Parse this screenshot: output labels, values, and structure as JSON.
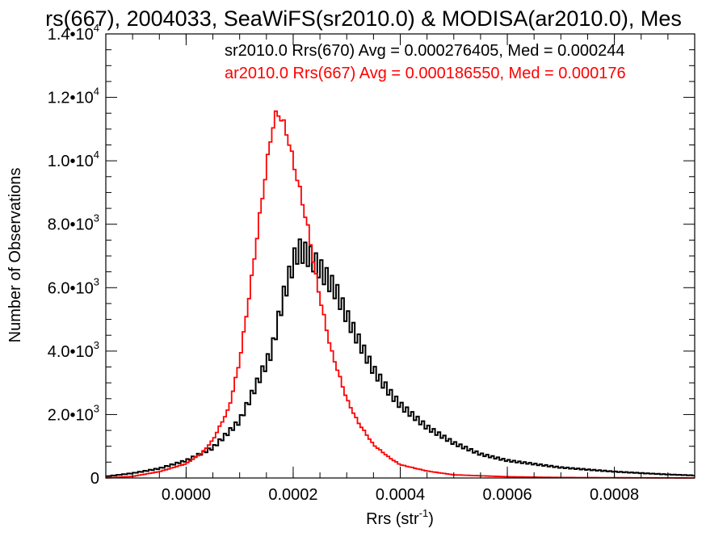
{
  "chart_data": {
    "type": "histogram-step",
    "title": "rs(667), 2004033, SeaWiFS(sr2010.0) & MODISA(ar2010.0), Mes",
    "xlabel": "Rrs (str",
    "xlabel_sup": "-1",
    "xlabel_end": ")",
    "ylabel": "Number of Observations",
    "xlim": [
      -0.00015,
      0.00095
    ],
    "ylim": [
      0,
      14000
    ],
    "x_ticks": [
      {
        "value": 0.0,
        "label": "0.0000"
      },
      {
        "value": 0.0002,
        "label": "0.0002"
      },
      {
        "value": 0.0004,
        "label": "0.0004"
      },
      {
        "value": 0.0006,
        "label": "0.0006"
      },
      {
        "value": 0.0008,
        "label": "0.0008"
      }
    ],
    "y_ticks": [
      {
        "value": 0,
        "mant": "0",
        "exp": ""
      },
      {
        "value": 2000,
        "mant": "2.0•10",
        "exp": "3"
      },
      {
        "value": 4000,
        "mant": "4.0•10",
        "exp": "3"
      },
      {
        "value": 6000,
        "mant": "6.0•10",
        "exp": "3"
      },
      {
        "value": 8000,
        "mant": "8.0•10",
        "exp": "3"
      },
      {
        "value": 10000,
        "mant": "1.0•10",
        "exp": "4"
      },
      {
        "value": 12000,
        "mant": "1.2•10",
        "exp": "4"
      },
      {
        "value": 14000,
        "mant": "1.4•10",
        "exp": "4"
      }
    ],
    "legend": {
      "placement": "top-right",
      "entries": [
        {
          "text": "sr2010.0 Rrs(670) Avg = 0.000276405, Med = 0.000244",
          "color": "#000000"
        },
        {
          "text": "ar2010.0 Rrs(667) Avg = 0.000186550, Med = 0.000176",
          "color": "#ff0000"
        }
      ]
    },
    "bin_width": 5e-06,
    "series": [
      {
        "name": "sr2010.0 Rrs(670)",
        "color": "#000000",
        "x": [
          -0.00015,
          -0.0001,
          -5e-05,
          0.0,
          5e-05,
          0.0001,
          0.00013,
          0.00016,
          0.00018,
          0.0002,
          0.00021,
          0.00022,
          0.00023,
          0.00025,
          0.00028,
          0.0003,
          0.00032,
          0.00035,
          0.00038,
          0.0004,
          0.00045,
          0.0005,
          0.00055,
          0.0006,
          0.0007,
          0.0008,
          0.0009,
          0.00095
        ],
        "y": [
          50,
          150,
          300,
          550,
          950,
          1800,
          2900,
          4000,
          5600,
          6800,
          7200,
          7100,
          7000,
          6600,
          5900,
          5100,
          4400,
          3400,
          2700,
          2300,
          1600,
          1100,
          750,
          550,
          330,
          200,
          110,
          80
        ]
      },
      {
        "name": "ar2010.0 Rrs(667)",
        "color": "#ff0000",
        "x": [
          -0.00015,
          -0.0001,
          -5e-05,
          0.0,
          3e-05,
          5e-05,
          8e-05,
          0.0001,
          0.00012,
          0.00014,
          0.00015,
          0.00016,
          0.00017,
          0.00018,
          0.00019,
          0.0002,
          0.00021,
          0.00022,
          0.00023,
          0.00024,
          0.00025,
          0.00027,
          0.0003,
          0.00032,
          0.00035,
          0.00038,
          0.0004,
          0.00045,
          0.0005,
          0.0006,
          0.0007,
          0.00095
        ],
        "y": [
          0,
          50,
          200,
          450,
          800,
          1200,
          2200,
          3700,
          6000,
          8600,
          9800,
          11000,
          11600,
          11300,
          10800,
          10000,
          9300,
          8500,
          7700,
          6600,
          5700,
          4100,
          2500,
          1800,
          1050,
          640,
          420,
          220,
          100,
          40,
          15,
          0
        ]
      }
    ]
  }
}
